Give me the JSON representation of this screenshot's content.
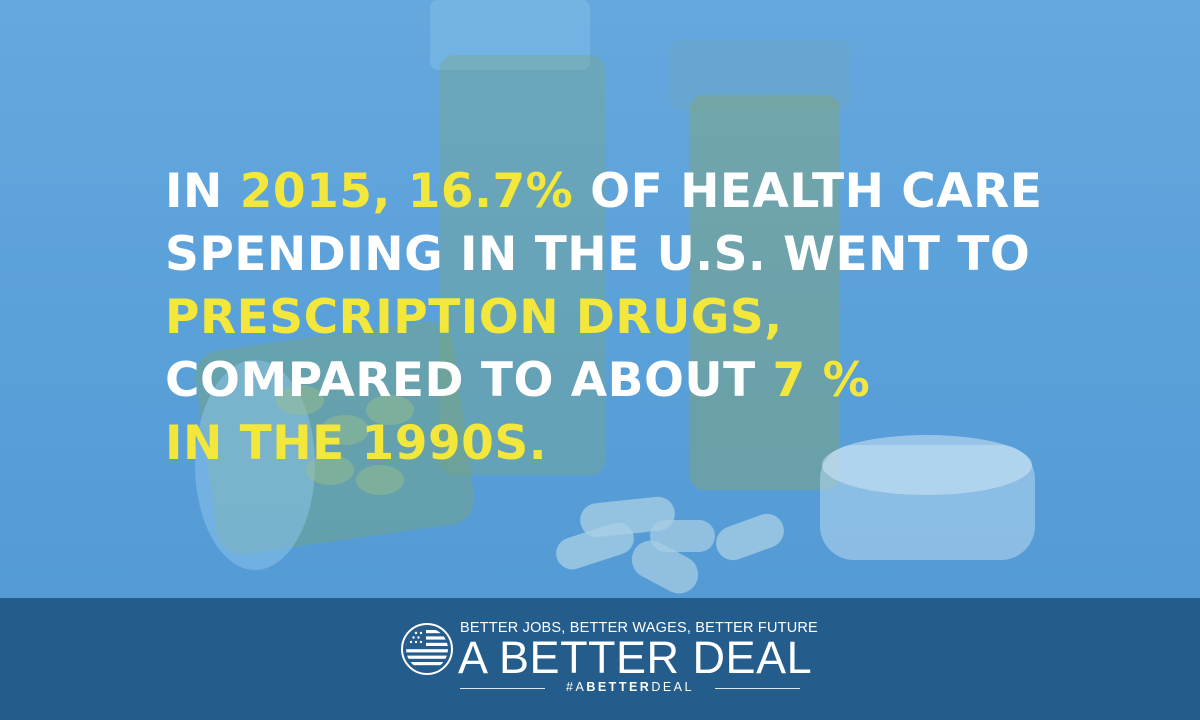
{
  "headline": {
    "lines": [
      [
        {
          "text": "IN ",
          "hl": false
        },
        {
          "text": "2015, 16.7%",
          "hl": true
        },
        {
          "text": " OF HEALTH CARE",
          "hl": false
        }
      ],
      [
        {
          "text": "SPENDING IN THE U.S. WENT TO",
          "hl": false
        }
      ],
      [
        {
          "text": "PRESCRIPTION DRUGS,",
          "hl": true
        }
      ],
      [
        {
          "text": "COMPARED TO ABOUT ",
          "hl": false
        },
        {
          "text": "7 %",
          "hl": true
        }
      ],
      [
        {
          "text": "IN THE 1990S.",
          "hl": true
        }
      ]
    ]
  },
  "branding": {
    "tagline": "BETTER JOBS, BETTER WAGES, BETTER FUTURE",
    "title": "A BETTER DEAL",
    "hashtag": {
      "prefix": "#A",
      "bold": "BETTER",
      "suffix": "DEAL"
    },
    "icon": "american-flag-circle-icon"
  },
  "colors": {
    "background_tint": "#5a9fd8",
    "highlight": "#f2e73a",
    "text": "#ffffff",
    "footer": "#245c8c"
  }
}
